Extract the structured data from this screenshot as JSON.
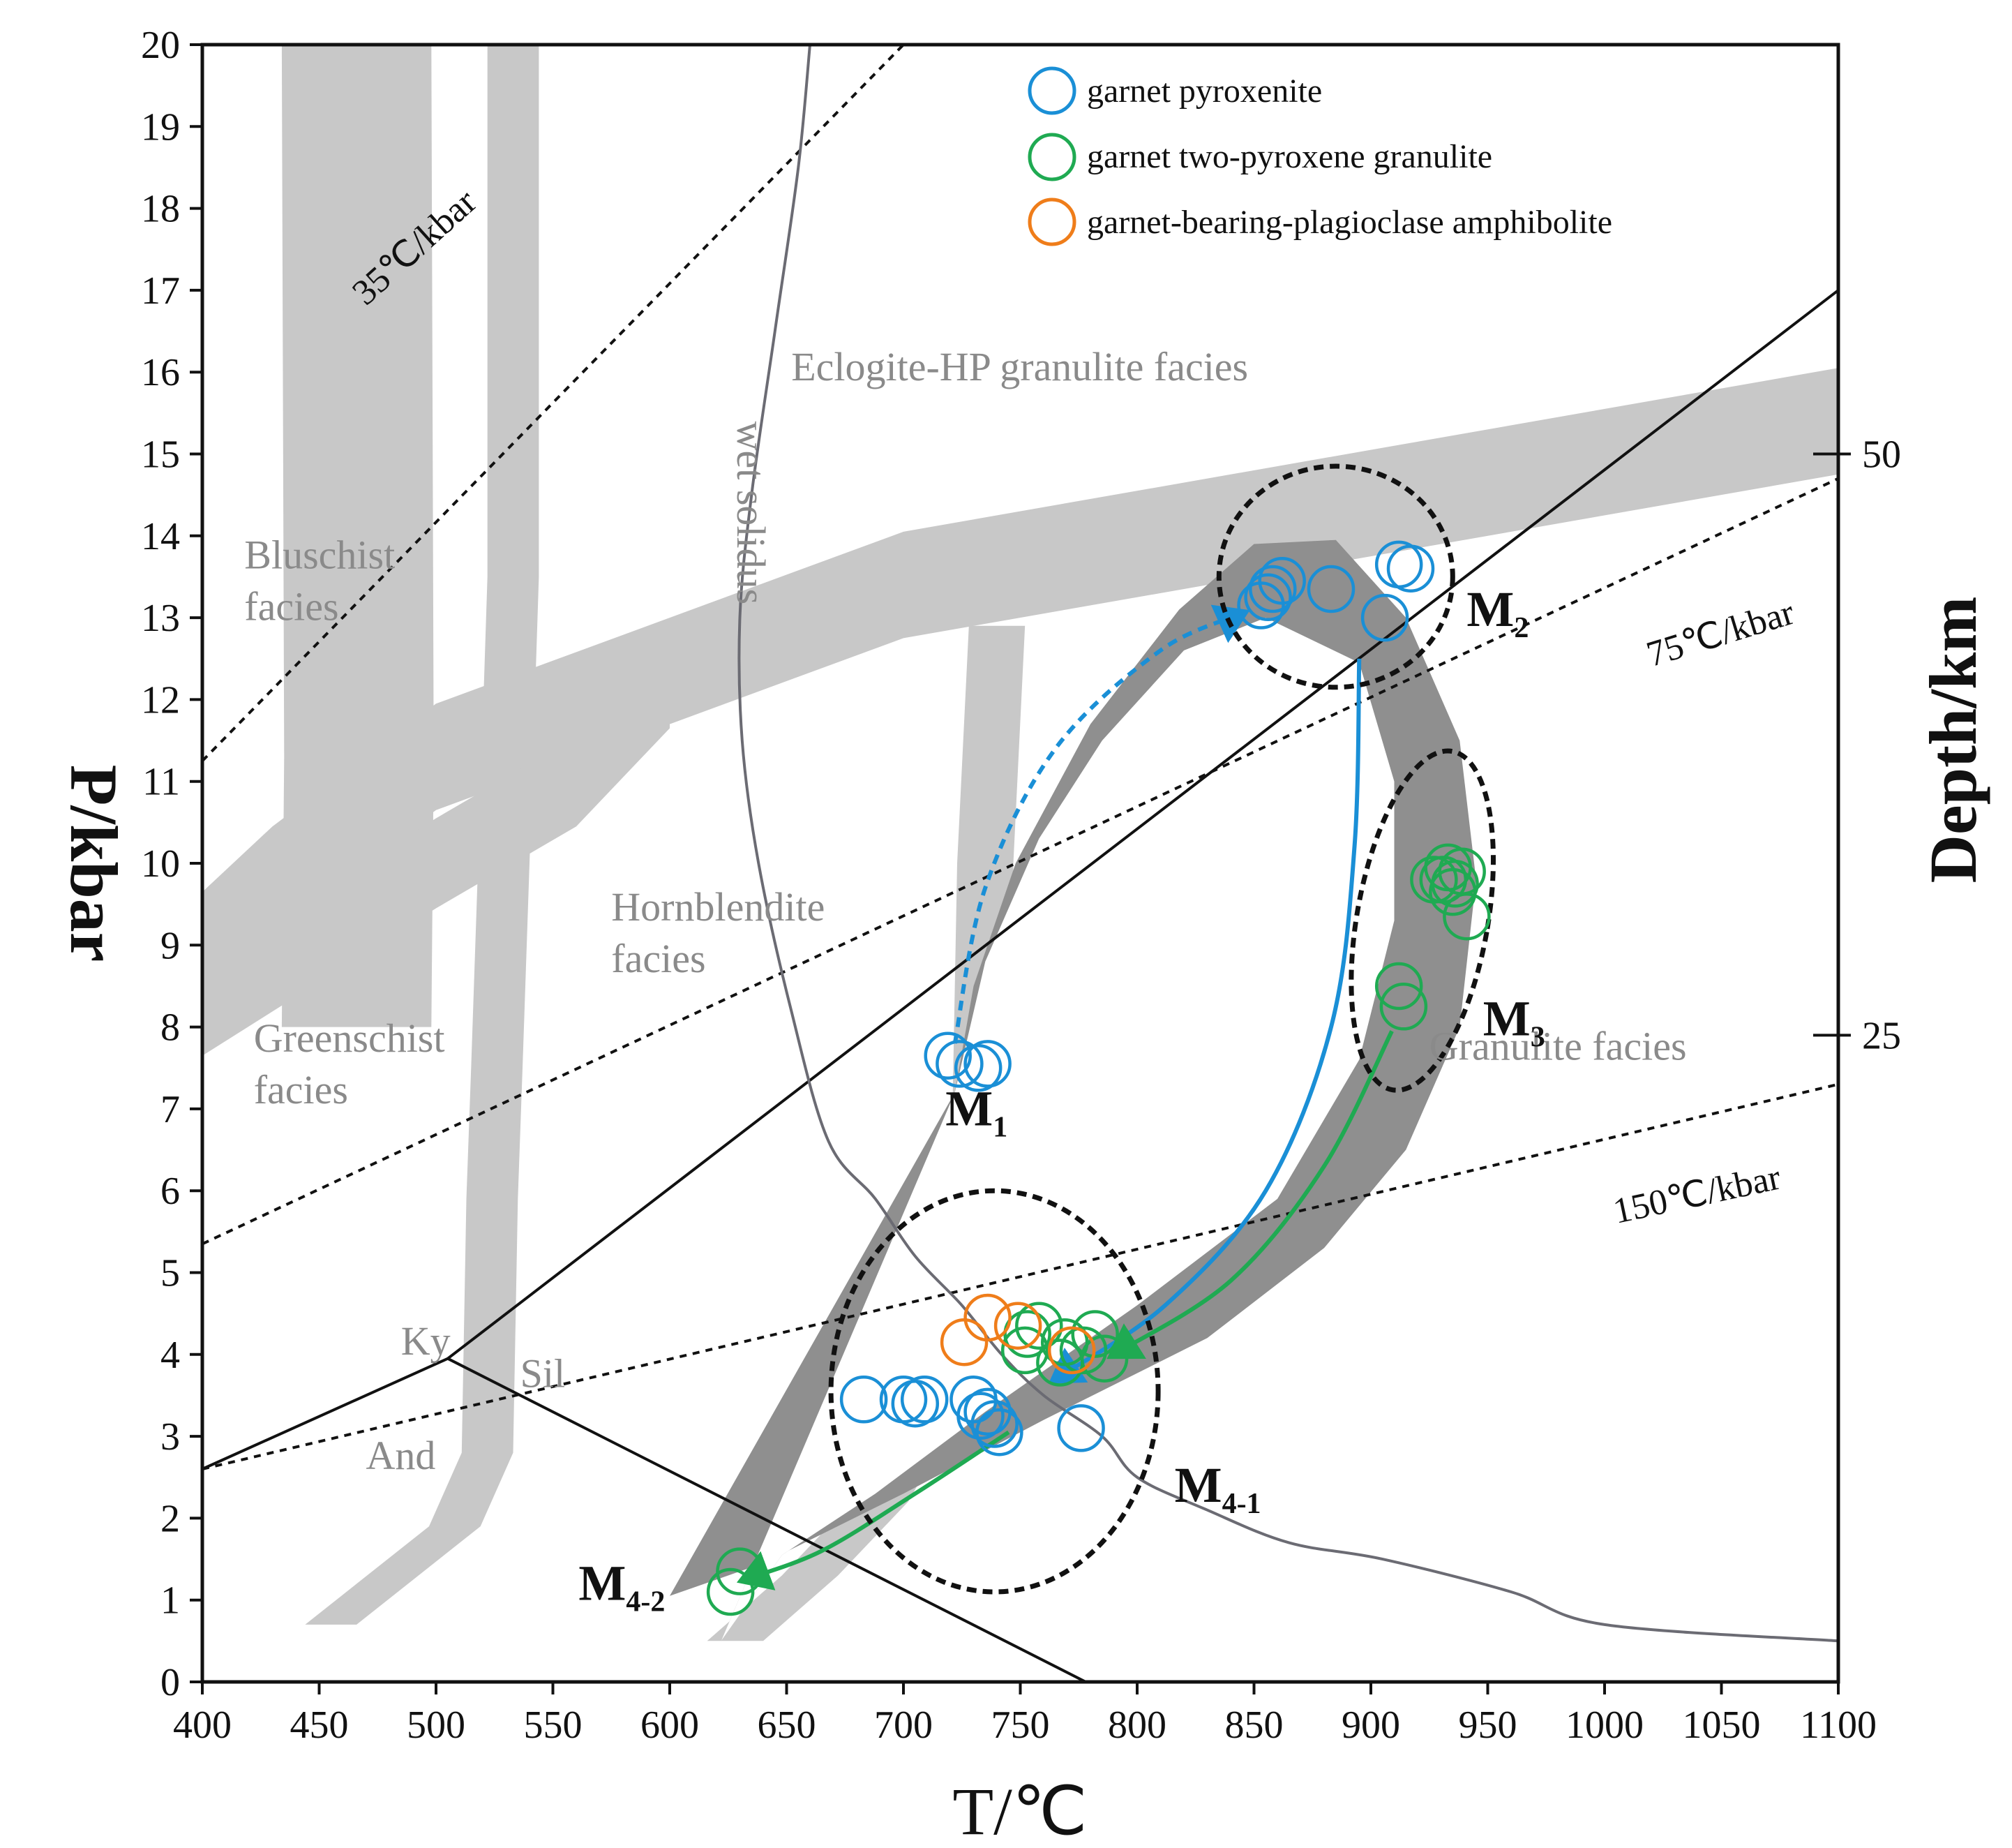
{
  "chart_data": {
    "type": "scatter",
    "title": "",
    "xlabel": "T/℃",
    "ylabel": "P/kbar",
    "y2label": "Depth/km",
    "xlim": [
      400,
      1100
    ],
    "ylim": [
      0,
      20
    ],
    "xticks": [
      "400",
      "450",
      "500",
      "550",
      "600",
      "650",
      "700",
      "750",
      "800",
      "850",
      "900",
      "950",
      "1000",
      "1050",
      "1100"
    ],
    "yticks": [
      "0",
      "1",
      "2",
      "3",
      "4",
      "5",
      "6",
      "7",
      "8",
      "9",
      "10",
      "11",
      "12",
      "13",
      "14",
      "15",
      "16",
      "17",
      "18",
      "19",
      "20"
    ],
    "y2ticks": [
      {
        "label": "25",
        "p": 7.9
      },
      {
        "label": "50",
        "p": 15.0
      }
    ],
    "colors": {
      "garnet_pyroxenite": "#1a8fd6",
      "granulite": "#1faa52",
      "amphibolite": "#ef7d1a",
      "path_band": "#8f8f8f",
      "facies_band": "#c8c8c8",
      "facies_text": "#8a8a8a",
      "solidus": "#6b6b73"
    },
    "legend": [
      {
        "label": "garnet pyroxenite",
        "color": "#1a8fd6"
      },
      {
        "label": "garnet two-pyroxene granulite",
        "color": "#1faa52"
      },
      {
        "label": "garnet-bearing-plagioclase amphibolite",
        "color": "#ef7d1a"
      }
    ],
    "facies_labels": [
      {
        "lines": [
          "Eclogite-HP granulite  facies"
        ],
        "t": 652,
        "p": 15.9
      },
      {
        "lines": [
          "Bluschist",
          "facies"
        ],
        "t": 418,
        "p": 13.6
      },
      {
        "lines": [
          "Hornblendite",
          "facies"
        ],
        "t": 575,
        "p": 9.3
      },
      {
        "lines": [
          "Greenschist",
          "facies"
        ],
        "t": 422,
        "p": 7.7
      },
      {
        "lines": [
          "Granulite  facies"
        ],
        "t": 925,
        "p": 7.6
      }
    ],
    "mineral_labels": [
      {
        "text": "Ky",
        "t": 485,
        "p": 4.0
      },
      {
        "text": "Sil",
        "t": 536,
        "p": 3.6
      },
      {
        "text": "And",
        "t": 470,
        "p": 2.6
      }
    ],
    "solidus_label": {
      "text": "wet solidus",
      "t": 629,
      "p": 15.4
    },
    "geotherm_labels": [
      {
        "text": "35℃/kbar",
        "t": 470,
        "p": 16.8,
        "angle": -42
      },
      {
        "text": "75℃/kbar",
        "t": 1020,
        "p": 12.4,
        "angle": -17
      },
      {
        "text": "150℃/kbar",
        "t": 1005,
        "p": 5.6,
        "angle": -12
      }
    ],
    "geotherms": [
      {
        "label": "35℃/kbar",
        "points": [
          [
            400,
            11.25
          ],
          [
            700,
            20.0
          ]
        ]
      },
      {
        "label": "75℃/kbar",
        "points": [
          [
            400,
            5.35
          ],
          [
            1100,
            14.7
          ]
        ]
      },
      {
        "label": "150℃/kbar",
        "points": [
          [
            400,
            2.6
          ],
          [
            1100,
            7.3
          ]
        ]
      }
    ],
    "reaction_lines": [
      {
        "label": "Ky-Sil",
        "points": [
          [
            400,
            2.6
          ],
          [
            505,
            3.95
          ],
          [
            1100,
            17.0
          ]
        ]
      },
      {
        "label": "Ky-And",
        "points": [
          [
            505,
            3.95
          ],
          [
            778,
            0.0
          ]
        ]
      }
    ],
    "wet_solidus": [
      [
        660,
        20.0
      ],
      [
        655,
        18.5
      ],
      [
        645,
        16.5
      ],
      [
        635,
        14.5
      ],
      [
        630,
        13.0
      ],
      [
        631,
        11.5
      ],
      [
        638,
        10.0
      ],
      [
        652,
        8.2
      ],
      [
        668,
        6.6
      ],
      [
        688,
        5.9
      ],
      [
        705,
        5.2
      ],
      [
        725,
        4.6
      ],
      [
        742,
        4.0
      ],
      [
        760,
        3.5
      ],
      [
        785,
        3.0
      ],
      [
        800,
        2.5
      ],
      [
        830,
        2.1
      ],
      [
        865,
        1.7
      ],
      [
        905,
        1.5
      ],
      [
        960,
        1.1
      ],
      [
        1000,
        0.7
      ],
      [
        1100,
        0.5
      ]
    ],
    "stages": [
      {
        "label": "M",
        "sub": "1",
        "t": 718,
        "p": 6.8
      },
      {
        "label": "M",
        "sub": "2",
        "t": 941,
        "p": 12.9
      },
      {
        "label": "M",
        "sub": "3",
        "t": 948,
        "p": 7.9
      },
      {
        "label": "M",
        "sub": "4-1",
        "t": 816,
        "p": 2.2
      },
      {
        "label": "M",
        "sub": "4-2",
        "t": 561,
        "p": 1.0
      }
    ],
    "stage_ellipses": [
      {
        "stage": "M2",
        "ct": 885,
        "cp": 13.5,
        "rt": 50,
        "rp": 1.35,
        "angle": 0
      },
      {
        "stage": "M3",
        "ct": 922,
        "cp": 9.3,
        "rt": 28,
        "rp": 2.1,
        "angle": 10
      },
      {
        "stage": "M4-1",
        "ct": 739,
        "cp": 3.55,
        "rt": 70,
        "rp": 2.45,
        "angle": 0
      }
    ],
    "paths": [
      {
        "name": "prograde M1-M2",
        "color": "#1a8fd6",
        "dashed": true,
        "points": [
          [
            722,
            7.8
          ],
          [
            735,
            9.7
          ],
          [
            765,
            11.4
          ],
          [
            810,
            12.6
          ],
          [
            845,
            13.05
          ]
        ]
      },
      {
        "name": "decompression M2-M4-1",
        "color": "#1a8fd6",
        "dashed": false,
        "points": [
          [
            895,
            12.5
          ],
          [
            893,
            10.2
          ],
          [
            883,
            8.0
          ],
          [
            855,
            6.0
          ],
          [
            812,
            4.6
          ],
          [
            765,
            3.7
          ]
        ]
      },
      {
        "name": "decompression M3-M4-1",
        "color": "#1faa52",
        "dashed": false,
        "points": [
          [
            909,
            7.95
          ],
          [
            880,
            6.3
          ],
          [
            840,
            4.9
          ],
          [
            790,
            4.0
          ]
        ]
      },
      {
        "name": "retrograde M4-1-M4-2",
        "color": "#1faa52",
        "dashed": false,
        "points": [
          [
            745,
            3.05
          ],
          [
            705,
            2.3
          ],
          [
            665,
            1.6
          ],
          [
            632,
            1.25
          ]
        ]
      }
    ],
    "band_outer": [
      [
        600,
        1.05
      ],
      [
        640,
        1.45
      ],
      [
        700,
        2.3
      ],
      [
        760,
        3.2
      ],
      [
        830,
        4.2
      ],
      [
        880,
        5.3
      ],
      [
        915,
        6.5
      ],
      [
        938,
        8.0
      ],
      [
        945,
        9.8
      ],
      [
        938,
        11.5
      ],
      [
        915,
        13.0
      ],
      [
        885,
        13.95
      ],
      [
        850,
        13.9
      ],
      [
        818,
        13.1
      ],
      [
        780,
        11.7
      ],
      [
        748,
        10.0
      ],
      [
        730,
        8.5
      ],
      [
        722,
        7.2
      ]
    ],
    "band_inner": [
      [
        722,
        7.2
      ],
      [
        735,
        8.8
      ],
      [
        758,
        10.3
      ],
      [
        785,
        11.5
      ],
      [
        820,
        12.6
      ],
      [
        855,
        13.0
      ],
      [
        895,
        12.45
      ],
      [
        910,
        11.0
      ],
      [
        910,
        9.3
      ],
      [
        895,
        7.6
      ],
      [
        860,
        5.9
      ],
      [
        800,
        4.6
      ],
      [
        735,
        3.3
      ],
      [
        688,
        2.3
      ],
      [
        648,
        1.55
      ],
      [
        622,
        0.5
      ]
    ],
    "facies_bands": [
      {
        "name": "bluschist-upper",
        "points": [
          [
            400,
            9.0
          ],
          [
            430,
            9.8
          ],
          [
            500,
            11.3
          ],
          [
            700,
            13.4
          ],
          [
            1100,
            15.4
          ]
        ],
        "halfwidth": 0.65
      },
      {
        "name": "vertical-left",
        "points": [
          [
            466,
            20.0
          ],
          [
            467,
            11.3
          ],
          [
            466,
            8.0
          ]
        ],
        "halfwidth_t": 32
      },
      {
        "name": "vertical-middle",
        "points": [
          [
            533,
            20.0
          ],
          [
            533,
            13.5
          ],
          [
            529,
            10.0
          ],
          [
            526,
            7.5
          ],
          [
            524,
            5.9
          ],
          [
            522,
            2.8
          ],
          [
            508,
            1.9
          ],
          [
            455,
            0.7
          ]
        ],
        "halfwidth_t": 11
      },
      {
        "name": "vertical-right",
        "points": [
          [
            740,
            12.9
          ],
          [
            735,
            10.0
          ],
          [
            733,
            7.0
          ],
          [
            733,
            4.8
          ],
          [
            718,
            3.6
          ],
          [
            690,
            2.2
          ],
          [
            660,
            1.3
          ],
          [
            628,
            0.5
          ]
        ],
        "halfwidth_t": 12
      },
      {
        "name": "lower-hornblendite",
        "points": [
          [
            400,
            8.2
          ],
          [
            500,
            10.0
          ],
          [
            560,
            11.0
          ],
          [
            600,
            12.2
          ]
        ],
        "halfwidth": 0.55
      }
    ],
    "series": [
      {
        "name": "garnet pyroxenite",
        "color": "#1a8fd6",
        "points": [
          [
            719,
            7.65
          ],
          [
            724,
            7.55
          ],
          [
            732,
            7.5
          ],
          [
            736,
            7.55
          ],
          [
            853,
            13.15
          ],
          [
            856,
            13.25
          ],
          [
            858,
            13.35
          ],
          [
            862,
            13.45
          ],
          [
            883,
            13.35
          ],
          [
            906,
            13.0
          ],
          [
            912,
            13.65
          ],
          [
            917,
            13.6
          ],
          [
            683,
            3.45
          ],
          [
            700,
            3.45
          ],
          [
            705,
            3.4
          ],
          [
            709,
            3.45
          ],
          [
            730,
            3.45
          ],
          [
            733,
            3.25
          ],
          [
            736,
            3.3
          ],
          [
            739,
            3.15
          ],
          [
            741,
            3.05
          ],
          [
            776,
            3.1
          ]
        ]
      },
      {
        "name": "garnet two-pyroxene granulite",
        "color": "#1faa52",
        "points": [
          [
            933,
            9.95
          ],
          [
            936,
            9.75
          ],
          [
            931,
            9.8
          ],
          [
            939,
            9.9
          ],
          [
            941,
            9.35
          ],
          [
            935,
            9.65
          ],
          [
            927,
            9.8
          ],
          [
            912,
            8.5
          ],
          [
            914,
            8.25
          ],
          [
            752,
            4.05
          ],
          [
            753,
            4.25
          ],
          [
            758,
            4.35
          ],
          [
            767,
            3.9
          ],
          [
            769,
            4.15
          ],
          [
            777,
            4.05
          ],
          [
            782,
            4.25
          ],
          [
            786,
            3.95
          ],
          [
            630,
            1.35
          ],
          [
            626,
            1.1
          ]
        ]
      },
      {
        "name": "garnet-bearing-plagioclase amphibolite",
        "color": "#ef7d1a",
        "points": [
          [
            726,
            4.15
          ],
          [
            736,
            4.45
          ],
          [
            749,
            4.35
          ],
          [
            772,
            4.05
          ]
        ]
      }
    ]
  }
}
